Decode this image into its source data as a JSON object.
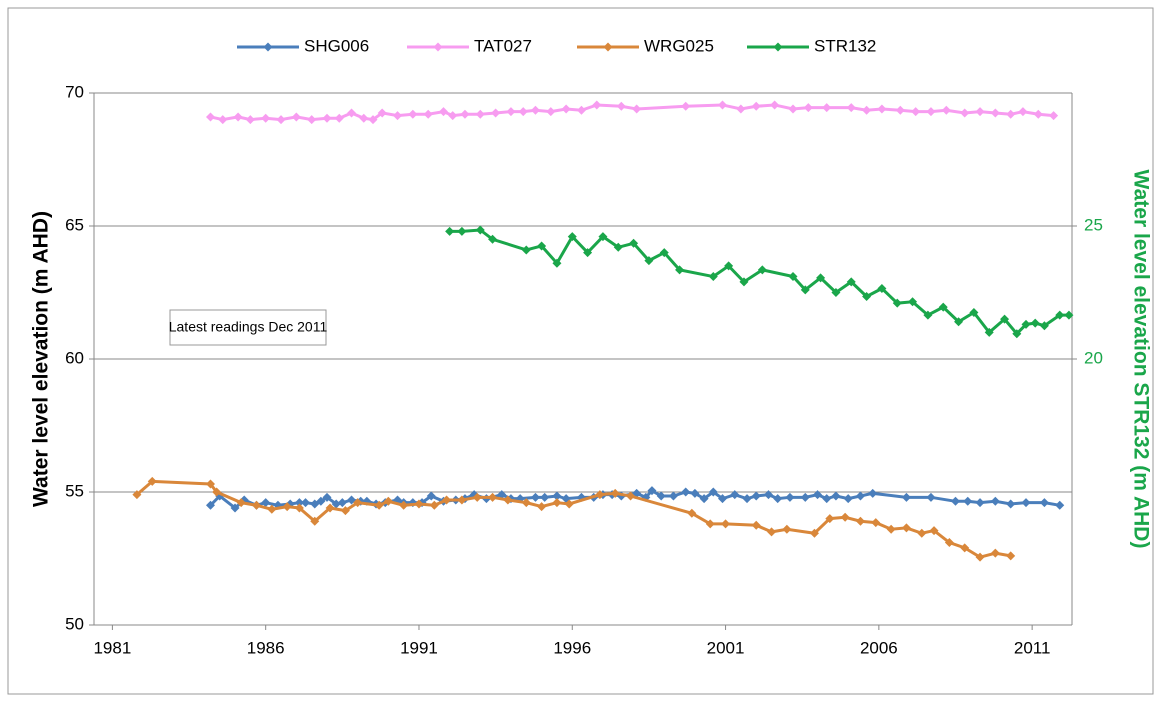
{
  "chart_data": {
    "type": "line",
    "y_label": "Water level elevation  (m AHD)",
    "y2_label": "Water level elevation STR132  (m AHD)",
    "annotation": "Latest readings Dec 2011",
    "xlim": [
      1980.4,
      2012.3
    ],
    "xticks": [
      1981,
      1986,
      1991,
      1996,
      2001,
      2006,
      2011
    ],
    "ylim": [
      50,
      70
    ],
    "yticks": [
      50,
      55,
      60,
      65,
      70
    ],
    "y2lim": [
      10,
      30
    ],
    "y2ticks": [
      20,
      25
    ],
    "y2_color": "#1aa64a",
    "grid": true,
    "legend": "top",
    "series": [
      {
        "name": "SHG006",
        "color": "#4a7ebb",
        "x": [
          1984.2,
          1984.5,
          1985.0,
          1985.3,
          1985.7,
          1986.0,
          1986.4,
          1986.8,
          1987.1,
          1987.3,
          1987.6,
          1987.8,
          1988.0,
          1988.3,
          1988.5,
          1988.8,
          1989.1,
          1989.3,
          1989.6,
          1989.9,
          1990.3,
          1990.5,
          1990.8,
          1991.1,
          1991.4,
          1991.8,
          1992.2,
          1992.5,
          1992.8,
          1993.2,
          1993.7,
          1994.0,
          1994.3,
          1994.8,
          1995.1,
          1995.5,
          1995.8,
          1996.3,
          1996.7,
          1997.0,
          1997.3,
          1997.6,
          1998.1,
          1998.4,
          1998.6,
          1998.9,
          1999.3,
          1999.7,
          2000.0,
          2000.3,
          2000.6,
          2000.9,
          2001.3,
          2001.7,
          2002.0,
          2002.4,
          2002.7,
          2003.1,
          2003.6,
          2004.0,
          2004.3,
          2004.6,
          2005.0,
          2005.4,
          2005.8,
          2006.9,
          2007.7,
          2008.5,
          2008.9,
          2009.3,
          2009.8,
          2010.3,
          2010.8,
          2011.4,
          2011.9
        ],
        "values": [
          54.5,
          54.85,
          54.4,
          54.7,
          54.5,
          54.6,
          54.5,
          54.55,
          54.6,
          54.6,
          54.55,
          54.65,
          54.8,
          54.55,
          54.6,
          54.7,
          54.65,
          54.65,
          54.55,
          54.6,
          54.7,
          54.6,
          54.6,
          54.6,
          54.85,
          54.65,
          54.7,
          54.75,
          54.9,
          54.75,
          54.9,
          54.75,
          54.75,
          54.8,
          54.8,
          54.85,
          54.75,
          54.8,
          54.8,
          54.9,
          54.9,
          54.85,
          54.95,
          54.8,
          55.05,
          54.85,
          54.85,
          55.0,
          54.95,
          54.75,
          55.0,
          54.75,
          54.9,
          54.75,
          54.85,
          54.9,
          54.75,
          54.8,
          54.8,
          54.9,
          54.75,
          54.85,
          54.75,
          54.85,
          54.95,
          54.8,
          54.8,
          54.65,
          54.65,
          54.6,
          54.65,
          54.55,
          54.6,
          54.6,
          54.5
        ]
      },
      {
        "name": "TAT027",
        "color": "#f79cf0",
        "x": [
          1984.2,
          1984.6,
          1985.1,
          1985.5,
          1986.0,
          1986.5,
          1987.0,
          1987.5,
          1988.0,
          1988.4,
          1988.8,
          1989.2,
          1989.5,
          1989.8,
          1990.3,
          1990.8,
          1991.3,
          1991.8,
          1992.1,
          1992.5,
          1993.0,
          1993.5,
          1994.0,
          1994.4,
          1994.8,
          1995.3,
          1995.8,
          1996.3,
          1996.8,
          1997.6,
          1998.1,
          1999.7,
          2000.9,
          2001.5,
          2002.0,
          2002.6,
          2003.2,
          2003.7,
          2004.3,
          2005.1,
          2005.6,
          2006.1,
          2006.7,
          2007.2,
          2007.7,
          2008.2,
          2008.8,
          2009.3,
          2009.8,
          2010.3,
          2010.7,
          2011.2,
          2011.7
        ],
        "values": [
          69.1,
          69.0,
          69.1,
          69.0,
          69.05,
          69.0,
          69.1,
          69.0,
          69.05,
          69.05,
          69.25,
          69.05,
          69.0,
          69.25,
          69.15,
          69.2,
          69.2,
          69.3,
          69.15,
          69.2,
          69.2,
          69.25,
          69.3,
          69.3,
          69.35,
          69.3,
          69.4,
          69.35,
          69.55,
          69.5,
          69.4,
          69.5,
          69.55,
          69.4,
          69.5,
          69.55,
          69.4,
          69.45,
          69.45,
          69.45,
          69.35,
          69.4,
          69.35,
          69.3,
          69.3,
          69.35,
          69.25,
          69.3,
          69.25,
          69.2,
          69.3,
          69.2,
          69.15
        ]
      },
      {
        "name": "WRG025",
        "color": "#d9873a",
        "x": [
          1981.8,
          1982.3,
          1984.2,
          1984.4,
          1985.2,
          1985.7,
          1986.2,
          1986.7,
          1987.1,
          1987.6,
          1988.1,
          1988.6,
          1989.0,
          1989.7,
          1990.0,
          1990.5,
          1991.0,
          1991.5,
          1991.9,
          1992.4,
          1992.9,
          1993.4,
          1993.9,
          1994.5,
          1995.0,
          1995.5,
          1995.9,
          1996.9,
          1997.4,
          1997.9,
          1999.9,
          2000.5,
          2001.0,
          2002.0,
          2002.5,
          2003.0,
          2003.9,
          2004.4,
          2004.9,
          2005.4,
          2005.9,
          2006.4,
          2006.9,
          2007.4,
          2007.8,
          2008.3,
          2008.8,
          2009.3,
          2009.8,
          2010.3
        ],
        "values": [
          54.9,
          55.4,
          55.3,
          55.0,
          54.6,
          54.5,
          54.35,
          54.45,
          54.4,
          53.9,
          54.4,
          54.3,
          54.6,
          54.5,
          54.65,
          54.5,
          54.55,
          54.5,
          54.7,
          54.7,
          54.8,
          54.8,
          54.7,
          54.6,
          54.45,
          54.6,
          54.55,
          54.9,
          54.95,
          54.85,
          54.2,
          53.8,
          53.8,
          53.75,
          53.5,
          53.6,
          53.45,
          54.0,
          54.05,
          53.9,
          53.85,
          53.6,
          53.65,
          53.45,
          53.55,
          53.1,
          52.9,
          52.55,
          52.7,
          52.6
        ]
      },
      {
        "name": "STR132",
        "color": "#1aa64a",
        "axis": "y2",
        "x": [
          1992.0,
          1992.4,
          1993.0,
          1993.4,
          1994.5,
          1995.0,
          1995.5,
          1996.0,
          1996.5,
          1997.0,
          1997.5,
          1998.0,
          1998.5,
          1999.0,
          1999.5,
          2000.6,
          2001.1,
          2001.6,
          2002.2,
          2003.2,
          2003.6,
          2004.1,
          2004.6,
          2005.1,
          2005.6,
          2006.1,
          2006.6,
          2007.1,
          2007.6,
          2008.1,
          2008.6,
          2009.1,
          2009.6,
          2010.1,
          2010.5,
          2010.8,
          2011.1,
          2011.4,
          2011.9,
          2012.2
        ],
        "values": [
          24.8,
          24.8,
          24.85,
          24.5,
          24.1,
          24.25,
          23.6,
          24.6,
          24.0,
          24.6,
          24.2,
          24.35,
          23.7,
          24.0,
          23.35,
          23.1,
          23.5,
          22.9,
          23.35,
          23.1,
          22.6,
          23.05,
          22.5,
          22.9,
          22.35,
          22.65,
          22.1,
          22.15,
          21.65,
          21.95,
          21.4,
          21.75,
          21.0,
          21.5,
          20.95,
          21.3,
          21.35,
          21.25,
          21.65,
          21.65
        ]
      }
    ]
  }
}
